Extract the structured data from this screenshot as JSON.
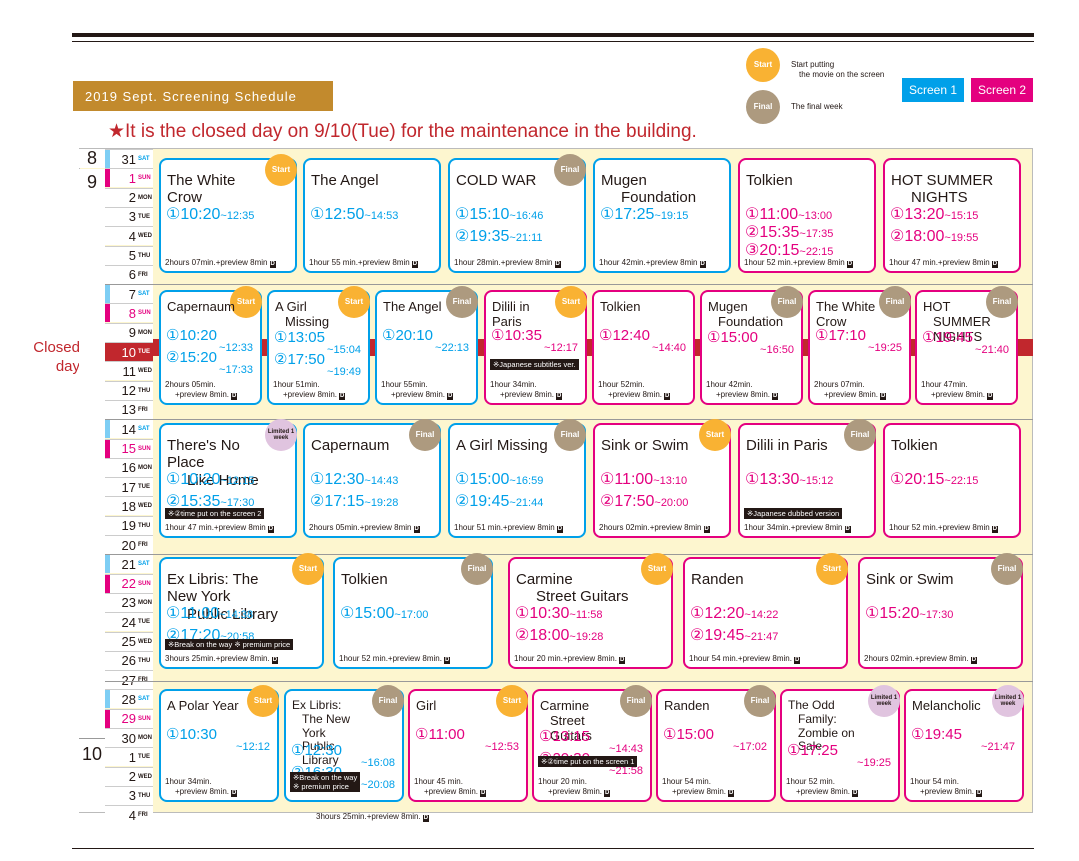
{
  "header": {
    "title": "2019 Sept. Screening Schedule",
    "closed_notice": "★It is the closed day on 9/10(Tue) for the maintenance in the building.",
    "closed_side": [
      "Closed",
      "day"
    ]
  },
  "legend": {
    "start_badge": "Start",
    "start_text": [
      "Start putting",
      "the movie on the screen"
    ],
    "final_badge": "Final",
    "final_text": "The final week",
    "screen1": "Screen 1",
    "screen2": "Screen 2"
  },
  "colors": {
    "screen1": "#00a0e9",
    "screen2": "#e4007f",
    "start": "#f9b233",
    "final": "#ad9a7f",
    "closed": "#c1272d"
  },
  "months": {
    "aug": "8",
    "sep": "9",
    "oct": "10"
  },
  "days": [
    {
      "n": "31",
      "d": "SAT"
    },
    {
      "n": "1",
      "d": "SUN"
    },
    {
      "n": "2",
      "d": "MON"
    },
    {
      "n": "3",
      "d": "TUE"
    },
    {
      "n": "4",
      "d": "WED"
    },
    {
      "n": "5",
      "d": "THU"
    },
    {
      "n": "6",
      "d": "FRI"
    },
    {
      "n": "7",
      "d": "SAT"
    },
    {
      "n": "8",
      "d": "SUN"
    },
    {
      "n": "9",
      "d": "MON"
    },
    {
      "n": "10",
      "d": "TUE"
    },
    {
      "n": "11",
      "d": "WED"
    },
    {
      "n": "12",
      "d": "THU"
    },
    {
      "n": "13",
      "d": "FRI"
    },
    {
      "n": "14",
      "d": "SAT"
    },
    {
      "n": "15",
      "d": "SUN"
    },
    {
      "n": "16",
      "d": "MON"
    },
    {
      "n": "17",
      "d": "TUE"
    },
    {
      "n": "18",
      "d": "WED"
    },
    {
      "n": "19",
      "d": "THU"
    },
    {
      "n": "20",
      "d": "FRI"
    },
    {
      "n": "21",
      "d": "SAT"
    },
    {
      "n": "22",
      "d": "SUN"
    },
    {
      "n": "23",
      "d": "MON"
    },
    {
      "n": "24",
      "d": "TUE"
    },
    {
      "n": "25",
      "d": "WED"
    },
    {
      "n": "26",
      "d": "THU"
    },
    {
      "n": "27",
      "d": "FRI"
    },
    {
      "n": "28",
      "d": "SAT"
    },
    {
      "n": "29",
      "d": "SUN"
    },
    {
      "n": "30",
      "d": "MON"
    },
    {
      "n": "1",
      "d": "TUE"
    },
    {
      "n": "2",
      "d": "WED"
    },
    {
      "n": "3",
      "d": "THU"
    },
    {
      "n": "4",
      "d": "FRI"
    }
  ],
  "weeks": [
    [
      {
        "screen": 1,
        "badge": "Start",
        "title": [
          "The White Crow"
        ],
        "times": [
          [
            "①10:20",
            "~12:35"
          ]
        ],
        "foot": "2hours 07min.+preview 8min"
      },
      {
        "screen": 1,
        "title": [
          "The Angel"
        ],
        "times": [
          [
            "①12:50",
            "~14:53"
          ]
        ],
        "foot": "1hour 55 min.+preview 8min"
      },
      {
        "screen": 1,
        "badge": "Final",
        "title": [
          "COLD WAR"
        ],
        "times": [
          [
            "①15:10",
            "~16:46"
          ],
          [
            "②19:35",
            "~21:11"
          ]
        ],
        "foot": "1hour 28min.+preview 8min"
      },
      {
        "screen": 1,
        "title": [
          "Mugen",
          "Foundation"
        ],
        "times": [
          [
            "①17:25",
            "~19:15"
          ]
        ],
        "foot": "1hour 42min.+preview 8min"
      },
      {
        "screen": 2,
        "title": [
          "Tolkien"
        ],
        "times": [
          [
            "①11:00",
            "~13:00"
          ],
          [
            "②15:35",
            "~17:35"
          ],
          [
            "③20:15",
            "~22:15"
          ]
        ],
        "foot": "1hour 52 min.+preview 8min"
      },
      {
        "screen": 2,
        "title": [
          "HOT SUMMER",
          "NIGHTS"
        ],
        "times": [
          [
            "①13:20",
            "~15:15"
          ],
          [
            "②18:00",
            "~19:55"
          ]
        ],
        "foot": "1hour 47 min.+preview 8min"
      }
    ],
    [
      {
        "screen": 1,
        "badge": "Start",
        "title": [
          "Capernaum"
        ],
        "times": [
          [
            "①10:20",
            "~12:33"
          ],
          [
            "②15:20",
            "~17:33"
          ]
        ],
        "foot": "2hours 05min.",
        "foot2": "+preview 8min."
      },
      {
        "screen": 1,
        "badge": "Start",
        "title": [
          "A Girl",
          "Missing"
        ],
        "times": [
          [
            "①13:05",
            "~15:04"
          ],
          [
            "②17:50",
            "~19:49"
          ]
        ],
        "foot": "1hour 51min.",
        "foot2": "+preview 8min."
      },
      {
        "screen": 1,
        "badge": "Final",
        "title": [
          "The Angel"
        ],
        "times": [
          [
            "①20:10",
            "~22:13"
          ]
        ],
        "foot": "1hour 55min.",
        "foot2": "+preview 8min."
      },
      {
        "screen": 2,
        "badge": "Start",
        "title": [
          "Dilili in Paris"
        ],
        "times": [
          [
            "①10:35",
            "~12:17"
          ]
        ],
        "note": "※Japanese subtitles ver.",
        "foot": "1hour 34min.",
        "foot2": "+preview 8min."
      },
      {
        "screen": 2,
        "title": [
          "Tolkien"
        ],
        "times": [
          [
            "①12:40",
            "~14:40"
          ]
        ],
        "foot": "1hour 52min.",
        "foot2": "+preview 8min."
      },
      {
        "screen": 2,
        "badge": "Final",
        "title": [
          "Mugen",
          "Foundation"
        ],
        "times": [
          [
            "①15:00",
            "~16:50"
          ]
        ],
        "foot": "1hour 42min.",
        "foot2": "+preview 8min."
      },
      {
        "screen": 2,
        "badge": "Final",
        "title": [
          "The White Crow"
        ],
        "times": [
          [
            "①17:10",
            "~19:25"
          ]
        ],
        "foot": "2hours 07min.",
        "foot2": "+preview 8min."
      },
      {
        "screen": 2,
        "badge": "Final",
        "title": [
          "HOT",
          "SUMMER NIGHTS"
        ],
        "times": [
          [
            "①19:45",
            "~21:40"
          ]
        ],
        "foot": "1hour 47min.",
        "foot2": "+preview 8min."
      }
    ],
    [
      {
        "screen": 1,
        "badge": "Limited 1 week",
        "title": [
          "There's No Place",
          "Like Home"
        ],
        "times": [
          [
            "①10:20",
            "~12:15"
          ],
          [
            "②15:35",
            "~17:30"
          ]
        ],
        "note": "※②time put on the screen 2",
        "foot": "1hour 47 min.+preview 8min"
      },
      {
        "screen": 1,
        "badge": "Final",
        "title": [
          "Capernaum"
        ],
        "times": [
          [
            "①12:30",
            "~14:43"
          ],
          [
            "②17:15",
            "~19:28"
          ]
        ],
        "foot": "2hours 05min.+preview 8min"
      },
      {
        "screen": 1,
        "badge": "Final",
        "title": [
          "A Girl  Missing"
        ],
        "times": [
          [
            "①15:00",
            "~16:59"
          ],
          [
            "②19:45",
            "~21:44"
          ]
        ],
        "foot": "1hour 51 min.+preview 8min"
      },
      {
        "screen": 2,
        "badge": "Start",
        "title": [
          "Sink or Swim"
        ],
        "times": [
          [
            "①11:00",
            "~13:10"
          ],
          [
            "②17:50",
            "~20:00"
          ]
        ],
        "foot": "2hours 02min.+preview 8min"
      },
      {
        "screen": 2,
        "badge": "Final",
        "title": [
          "Dilili in Paris"
        ],
        "times": [
          [
            "①13:30",
            "~15:12"
          ]
        ],
        "note": "※Japanese dubbed version",
        "foot": "1hour 34min.+preview 8min"
      },
      {
        "screen": 2,
        "title": [
          "Tolkien"
        ],
        "times": [
          [
            "①20:15",
            "~22:15"
          ]
        ],
        "foot": "1hour 52 min.+preview 8min"
      }
    ],
    [
      {
        "screen": 1,
        "badge": "Start",
        "title": [
          "Ex Libris: The New York",
          "Public Library"
        ],
        "times": [
          [
            "①11:00",
            "~14:38"
          ],
          [
            "②17:20",
            "~20:58"
          ]
        ],
        "note": "※Break on the way ※ premium price",
        "foot": "3hours 25min.+preview 8min."
      },
      {
        "screen": 1,
        "badge": "Final",
        "title": [
          "Tolkien"
        ],
        "times": [
          [
            "①15:00",
            "~17:00"
          ]
        ],
        "foot": "1hour 52 min.+preview 8min."
      },
      {
        "screen": 2,
        "badge": "Start",
        "title": [
          "Carmine",
          "Street Guitars"
        ],
        "times": [
          [
            "①10:30",
            "~11:58"
          ],
          [
            "②18:00",
            "~19:28"
          ]
        ],
        "foot": "1hour 20 min.+preview 8min."
      },
      {
        "screen": 2,
        "badge": "Start",
        "title": [
          "Randen"
        ],
        "times": [
          [
            "①12:20",
            "~14:22"
          ],
          [
            "②19:45",
            "~21:47"
          ]
        ],
        "foot": "1hour 54 min.+preview 8min."
      },
      {
        "screen": 2,
        "badge": "Final",
        "title": [
          "Sink or Swim"
        ],
        "times": [
          [
            "①15:20",
            "~17:30"
          ]
        ],
        "foot": "2hours 02min.+preview 8min."
      }
    ],
    [
      {
        "screen": 1,
        "badge": "Start",
        "title": [
          "A Polar Year"
        ],
        "times": [
          [
            "①10:30",
            "~12:12"
          ]
        ],
        "foot": "1hour 34min.",
        "foot2": "+preview 8min."
      },
      {
        "screen": 1,
        "badge": "Final",
        "title": [
          "Ex Libris:",
          "The New York",
          "Public Library"
        ],
        "times": [
          [
            "①12:30",
            "~16:08"
          ],
          [
            "②16:30",
            "~20:08"
          ]
        ],
        "note": "※Break on the way",
        "note2": "※ premium price",
        "foot": "3hours 25min.+preview 8min."
      },
      {
        "screen": 2,
        "badge": "Start",
        "title": [
          "Girl"
        ],
        "times": [
          [
            "①11:00",
            "~12:53"
          ]
        ],
        "foot": "1hour 45 min.",
        "foot2": "+preview 8min."
      },
      {
        "screen": 2,
        "badge": "Final",
        "title": [
          "Carmine",
          "Street Guitars"
        ],
        "times": [
          [
            "①13:15",
            "~14:43"
          ],
          [
            "②20:30",
            "~21:58"
          ]
        ],
        "note": "※②time put on the screen 1",
        "foot": "1hour 20 min.",
        "foot2": "+preview 8min."
      },
      {
        "screen": 2,
        "badge": "Final",
        "title": [
          "Randen"
        ],
        "times": [
          [
            "①15:00",
            "~17:02"
          ]
        ],
        "foot": "1hour 54 min.",
        "foot2": "+preview 8min."
      },
      {
        "screen": 2,
        "badge": "Limited 1 week",
        "title": [
          "The Odd",
          "Family:",
          "Zombie on Sale"
        ],
        "times": [
          [
            "①17:25",
            "~19:25"
          ]
        ],
        "foot": "1hour 52 min.",
        "foot2": "+preview 8min."
      },
      {
        "screen": 2,
        "badge": "Limited 1 week",
        "title": [
          "Melancholic"
        ],
        "times": [
          [
            "①19:45",
            "~21:47"
          ]
        ],
        "foot": "1hour 54 min.",
        "foot2": "+preview 8min."
      }
    ]
  ]
}
